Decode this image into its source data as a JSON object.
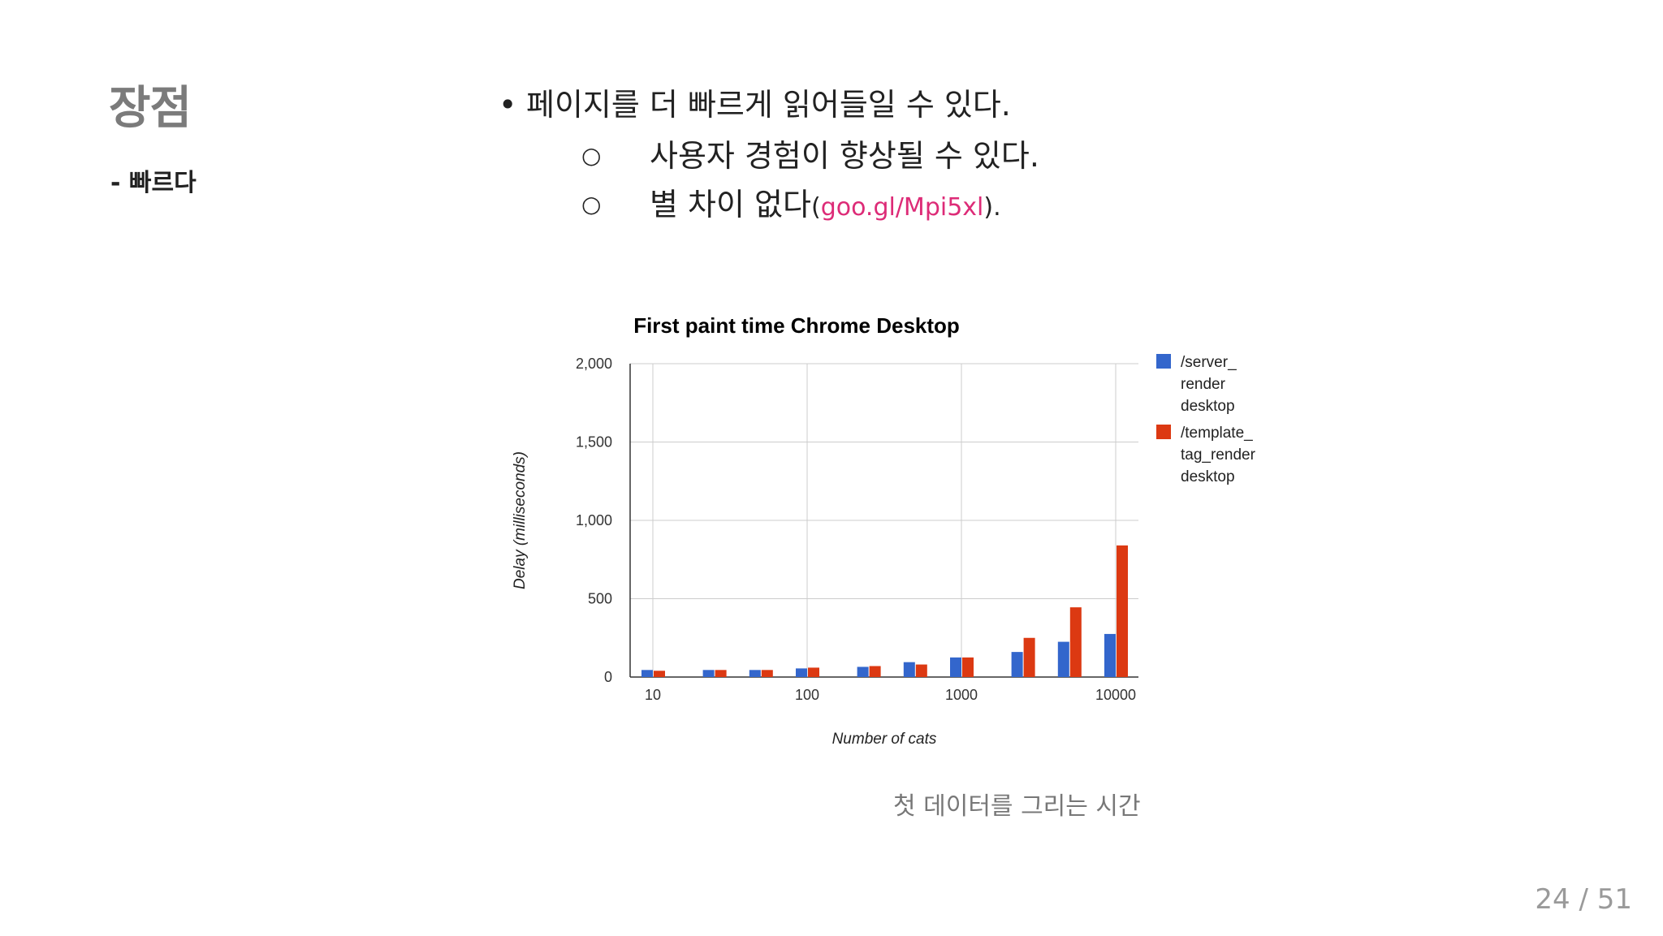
{
  "slide": {
    "title": "장점",
    "subtitle": "- 빠르다",
    "bullet": {
      "text": "페이지를 더 빠르게 읽어들일 수 있다.",
      "sub": [
        {
          "text": "사용자 경험이 향상될 수 있다."
        },
        {
          "text": "별 차이 없다",
          "paren_open": "(",
          "link": "goo.gl/Mpi5xl",
          "paren_close": ")."
        }
      ]
    },
    "caption": "첫 데이터를 그리는 시간",
    "page_number": "24 / 51"
  },
  "chart_data": {
    "type": "bar",
    "title": "First paint time Chrome Desktop",
    "xlabel": "Number of cats",
    "ylabel": "Delay (milliseconds)",
    "x_scale": "log",
    "x_ticks": [
      "10",
      "100",
      "1000",
      "10000"
    ],
    "y_ticks": [
      "0",
      "500",
      "1,000",
      "1,500",
      "2,000"
    ],
    "ylim": [
      0,
      2000
    ],
    "grid": true,
    "legend_position": "right",
    "x": [
      10,
      25,
      50,
      100,
      250,
      500,
      1000,
      2500,
      5000,
      10000
    ],
    "series": [
      {
        "name": "/server_ render desktop",
        "color": "#3366cc",
        "values": [
          45,
          45,
          45,
          55,
          65,
          95,
          125,
          160,
          225,
          275
        ]
      },
      {
        "name": "/template_ tag_render desktop",
        "color": "#dc3912",
        "values": [
          40,
          45,
          45,
          60,
          70,
          80,
          125,
          250,
          445,
          840
        ]
      }
    ]
  }
}
